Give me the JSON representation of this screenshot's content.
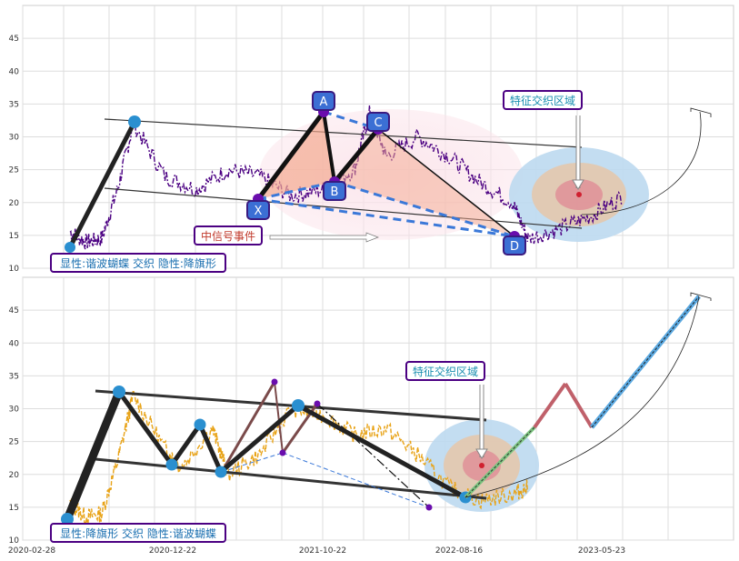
{
  "chart_data": [
    {
      "type": "line",
      "panel": "top",
      "ylim": [
        10,
        50
      ],
      "yticks": [
        10,
        15,
        20,
        25,
        30,
        35,
        40,
        45
      ],
      "grid": true,
      "line_color": "#4b0082",
      "price": [
        [
          0,
          15.5
        ],
        [
          20,
          14
        ],
        [
          40,
          14.5
        ],
        [
          60,
          22
        ],
        [
          80,
          32
        ],
        [
          120,
          24
        ],
        [
          160,
          22
        ],
        [
          200,
          25
        ],
        [
          240,
          24
        ],
        [
          280,
          21
        ],
        [
          320,
          22
        ],
        [
          360,
          25
        ],
        [
          380,
          34
        ],
        [
          400,
          27
        ],
        [
          440,
          30
        ],
        [
          480,
          27
        ],
        [
          520,
          23
        ],
        [
          560,
          20
        ],
        [
          580,
          14.5
        ],
        [
          620,
          16
        ],
        [
          660,
          18
        ],
        [
          700,
          21
        ]
      ],
      "pattern": {
        "points": [
          {
            "label": "X",
            "x": 280,
            "y": 20.5
          },
          {
            "label": "A",
            "x": 360,
            "y": 34
          },
          {
            "label": "B",
            "x": 376,
            "y": 22.5
          },
          {
            "label": "C",
            "x": 440,
            "y": 31
          },
          {
            "label": "D",
            "x": 640,
            "y": 14.5
          }
        ]
      },
      "impulse": {
        "from": {
          "x": 20,
          "y": 13
        },
        "to": {
          "x": 160,
          "y": 32
        }
      },
      "channel": {
        "upper": [
          {
            "x": 115,
            "y": 32.5
          },
          {
            "x": 650,
            "y": 28
          }
        ],
        "lower": [
          {
            "x": 115,
            "y": 22
          },
          {
            "x": 650,
            "y": 16
          }
        ]
      },
      "target": {
        "x": 705,
        "y": 21,
        "bracket_x": 895,
        "bracket_y": 34
      },
      "labels": {
        "event": "中信号事件",
        "zone": "特征交织区域",
        "legend": "显性:谐波蝴蝶 交织 隐性:降旗形"
      }
    },
    {
      "type": "line",
      "panel": "bottom",
      "ylim": [
        10,
        50
      ],
      "yticks": [
        10,
        15,
        20,
        25,
        30,
        35,
        40,
        45
      ],
      "grid": true,
      "line_color": "#e8a317",
      "x_ticks": [
        "2020-02-28",
        "2020-12-22",
        "2021-10-22",
        "2022-08-16",
        "2023-05-23"
      ],
      "price": [
        [
          0,
          15.5
        ],
        [
          20,
          13.5
        ],
        [
          40,
          14
        ],
        [
          60,
          22
        ],
        [
          80,
          32
        ],
        [
          120,
          24
        ],
        [
          140,
          21
        ],
        [
          180,
          27
        ],
        [
          200,
          20
        ],
        [
          240,
          23
        ],
        [
          280,
          30
        ],
        [
          320,
          29
        ],
        [
          360,
          26
        ],
        [
          400,
          27
        ],
        [
          440,
          23
        ],
        [
          480,
          18
        ],
        [
          520,
          16
        ],
        [
          560,
          17
        ],
        [
          580,
          18
        ]
      ],
      "zigzag": [
        {
          "x": 20,
          "y": 13
        },
        {
          "x": 80,
          "y": 32
        },
        {
          "x": 140,
          "y": 21.2
        },
        {
          "x": 180,
          "y": 27.2
        },
        {
          "x": 200,
          "y": 20.2
        },
        {
          "x": 280,
          "y": 30.3
        },
        {
          "x": 550,
          "y": 16.3
        }
      ],
      "channel": {
        "upper": [
          {
            "x": 60,
            "y": 32.5
          },
          {
            "x": 580,
            "y": 28
          }
        ],
        "lower": [
          {
            "x": 60,
            "y": 22
          },
          {
            "x": 580,
            "y": 16
          }
        ]
      },
      "projection": [
        {
          "x": 550,
          "y": 16.3
        },
        {
          "x": 660,
          "y": 33.5
        },
        {
          "x": 700,
          "y": 27
        },
        {
          "x": 830,
          "y": 47
        }
      ],
      "labels": {
        "zone": "特征交织区域",
        "legend": "显性:降旗形 交织 隐性:谐波蝴蝶"
      }
    }
  ]
}
